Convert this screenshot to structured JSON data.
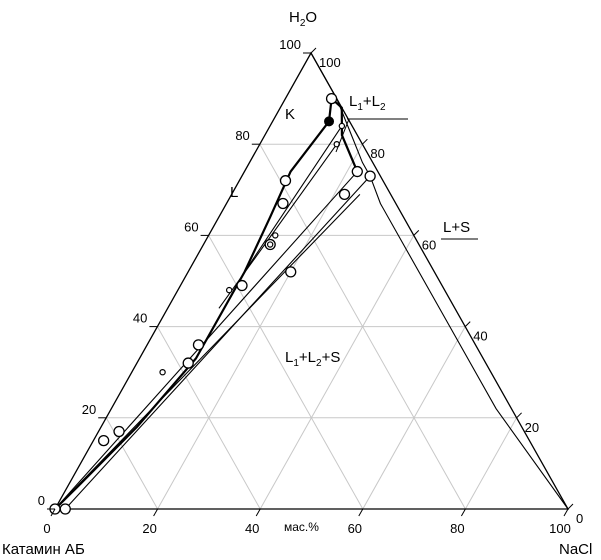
{
  "vertices": {
    "top": {
      "label_main": "H",
      "label_sub": "2",
      "label_tail": "O"
    },
    "left": {
      "label": "Катамин АБ"
    },
    "right": {
      "label": "NaCl"
    }
  },
  "axes": {
    "bottom_ticks": [
      "0",
      "20",
      "40",
      "60",
      "80",
      "100"
    ],
    "left_ticks": [
      "0",
      "20",
      "40",
      "60",
      "80",
      "100"
    ],
    "right_ticks": [
      "100",
      "80",
      "60",
      "40",
      "20",
      "0"
    ],
    "unit": "мас.%"
  },
  "regions": {
    "L": "L",
    "L1L2": {
      "a": "L",
      "s1": "1",
      "b": "+L",
      "s2": "2"
    },
    "LS": "L+S",
    "L1L2S": {
      "a": "L",
      "s1": "1",
      "b": "+L",
      "s2": "2",
      "c": "+S"
    },
    "K": "K"
  },
  "chart_data": {
    "type": "ternary",
    "components": [
      "Катамин АБ",
      "NaCl",
      "H2O"
    ],
    "units": "мас.%",
    "critical_point_K": {
      "nacl": 11,
      "h2o": 85
    },
    "binodal_left": [
      {
        "nacl": 0,
        "h2o": 0
      },
      {
        "nacl": 2,
        "h2o": 5
      },
      {
        "nacl": 7,
        "h2o": 18
      },
      {
        "nacl": 11,
        "h2o": 33
      },
      {
        "nacl": 11,
        "h2o": 52
      },
      {
        "nacl": 10,
        "h2o": 64
      },
      {
        "nacl": 9,
        "h2o": 74
      },
      {
        "nacl": 11,
        "h2o": 85
      },
      {
        "nacl": 9,
        "h2o": 90
      }
    ],
    "binodal_right": [
      {
        "nacl": 9,
        "h2o": 90
      },
      {
        "nacl": 12,
        "h2o": 88
      },
      {
        "nacl": 15,
        "h2o": 82
      },
      {
        "nacl": 22,
        "h2o": 74
      }
    ],
    "solubility_curve": [
      {
        "nacl": 0,
        "h2o": 100
      },
      {
        "nacl": 10,
        "h2o": 90
      },
      {
        "nacl": 16,
        "h2o": 83
      },
      {
        "nacl": 22,
        "h2o": 76
      },
      {
        "nacl": 25,
        "h2o": 73
      },
      {
        "nacl": 30,
        "h2o": 67
      },
      {
        "nacl": 40,
        "h2o": 57
      },
      {
        "nacl": 55,
        "h2o": 42
      },
      {
        "nacl": 75,
        "h2o": 22
      },
      {
        "nacl": 100,
        "h2o": 0
      }
    ],
    "tie_lines": [
      {
        "from": {
          "nacl": 11,
          "h2o": 52
        },
        "to": {
          "nacl": 14,
          "h2o": 84
        }
      },
      {
        "from": {
          "nacl": 10,
          "h2o": 44
        },
        "to": {
          "nacl": 15,
          "h2o": 80
        }
      },
      {
        "from": {
          "nacl": 0,
          "h2o": 0
        },
        "to": {
          "nacl": 22,
          "h2o": 74
        }
      },
      {
        "from": {
          "nacl": 0,
          "h2o": 0
        },
        "to": {
          "nacl": 25,
          "h2o": 69
        }
      },
      {
        "from": {
          "nacl": 2,
          "h2o": 0
        },
        "to": {
          "nacl": 25,
          "h2o": 73
        }
      }
    ],
    "small_points": [
      {
        "nacl": 14,
        "h2o": 84
      },
      {
        "nacl": 15,
        "h2o": 80
      },
      {
        "nacl": 13,
        "h2o": 60
      },
      {
        "nacl": 13,
        "h2o": 58
      },
      {
        "nacl": 10,
        "h2o": 48
      },
      {
        "nacl": 6,
        "h2o": 30
      }
    ],
    "large_points": [
      {
        "nacl": 0,
        "h2o": 0
      },
      {
        "nacl": 2,
        "h2o": 0
      },
      {
        "nacl": 2,
        "h2o": 15
      },
      {
        "nacl": 4,
        "h2o": 17
      },
      {
        "nacl": 10,
        "h2o": 32
      },
      {
        "nacl": 10,
        "h2o": 36
      },
      {
        "nacl": 12,
        "h2o": 49
      },
      {
        "nacl": 11,
        "h2o": 67
      },
      {
        "nacl": 13,
        "h2o": 58
      },
      {
        "nacl": 20,
        "h2o": 52
      },
      {
        "nacl": 9,
        "h2o": 72
      },
      {
        "nacl": 9,
        "h2o": 90
      },
      {
        "nacl": 22,
        "h2o": 74
      },
      {
        "nacl": 22,
        "h2o": 69
      },
      {
        "nacl": 25,
        "h2o": 73
      }
    ]
  }
}
